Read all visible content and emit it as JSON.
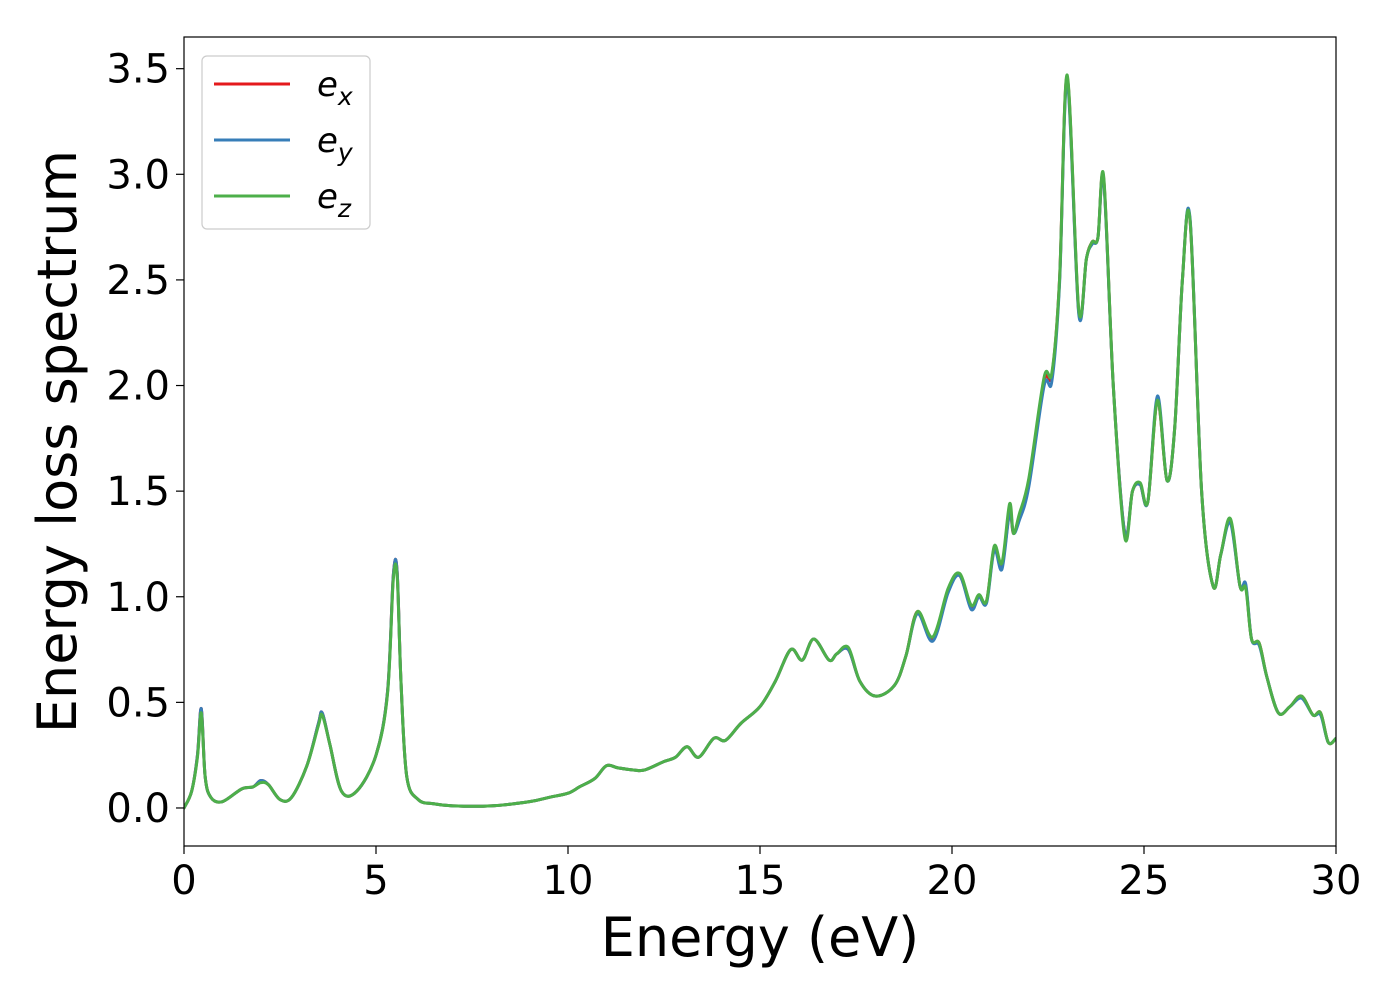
{
  "chart_data": {
    "type": "line",
    "xlabel": "Energy (eV)",
    "ylabel": "Energy loss spectrum",
    "xlim": [
      0,
      30
    ],
    "ylim": [
      -0.18,
      3.65
    ],
    "xticks": [
      "0",
      "5",
      "10",
      "15",
      "20",
      "25",
      "30"
    ],
    "yticks": [
      "0.0",
      "0.5",
      "1.0",
      "1.5",
      "2.0",
      "2.5",
      "3.0",
      "3.5"
    ],
    "grid": false,
    "legend_position": "top-left",
    "x": [
      0,
      0.2,
      0.35,
      0.45,
      0.55,
      0.7,
      1.0,
      1.5,
      1.8,
      2.0,
      2.2,
      2.5,
      2.8,
      3.2,
      3.5,
      3.6,
      3.8,
      4.1,
      4.5,
      5.0,
      5.3,
      5.45,
      5.55,
      5.65,
      5.8,
      6.1,
      6.5,
      7.0,
      8.0,
      9.0,
      9.5,
      10.0,
      10.3,
      10.7,
      11.0,
      11.3,
      11.7,
      12.0,
      12.5,
      12.8,
      13.1,
      13.4,
      13.8,
      14.1,
      14.5,
      15.0,
      15.4,
      15.8,
      16.1,
      16.4,
      16.8,
      17.0,
      17.3,
      17.6,
      18.0,
      18.5,
      18.8,
      19.1,
      19.5,
      19.9,
      20.2,
      20.5,
      20.7,
      20.9,
      21.1,
      21.3,
      21.5,
      21.6,
      21.75,
      22.0,
      22.4,
      22.6,
      22.8,
      23.0,
      23.3,
      23.5,
      23.65,
      23.8,
      23.95,
      24.2,
      24.5,
      24.7,
      24.9,
      25.1,
      25.35,
      25.6,
      25.8,
      26.0,
      26.2,
      26.5,
      26.8,
      27.0,
      27.25,
      27.5,
      27.65,
      27.8,
      28.0,
      28.2,
      28.5,
      28.8,
      29.1,
      29.4,
      29.6,
      29.8,
      30.0
    ],
    "series": [
      {
        "name": "e_x",
        "color": "#e41a1c",
        "values": [
          0.0,
          0.08,
          0.25,
          0.47,
          0.15,
          0.05,
          0.03,
          0.09,
          0.1,
          0.13,
          0.11,
          0.04,
          0.05,
          0.2,
          0.4,
          0.45,
          0.3,
          0.08,
          0.08,
          0.25,
          0.55,
          1.1,
          1.12,
          0.6,
          0.15,
          0.04,
          0.02,
          0.01,
          0.01,
          0.03,
          0.05,
          0.07,
          0.1,
          0.14,
          0.2,
          0.19,
          0.18,
          0.18,
          0.22,
          0.24,
          0.29,
          0.24,
          0.33,
          0.32,
          0.4,
          0.48,
          0.6,
          0.75,
          0.7,
          0.8,
          0.7,
          0.73,
          0.75,
          0.6,
          0.53,
          0.58,
          0.72,
          0.93,
          0.8,
          1.03,
          1.1,
          0.95,
          1.0,
          0.98,
          1.23,
          1.15,
          1.4,
          1.3,
          1.38,
          1.55,
          2.02,
          2.05,
          2.5,
          3.46,
          2.35,
          2.6,
          2.68,
          2.7,
          2.98,
          2.0,
          1.3,
          1.5,
          1.53,
          1.45,
          1.93,
          1.55,
          1.8,
          2.5,
          2.78,
          1.5,
          1.05,
          1.2,
          1.36,
          1.05,
          1.05,
          0.8,
          0.78,
          0.62,
          0.45,
          0.48,
          0.53,
          0.44,
          0.45,
          0.31,
          0.33
        ]
      },
      {
        "name": "e_y",
        "color": "#377eb8",
        "values": [
          0.0,
          0.08,
          0.25,
          0.47,
          0.15,
          0.05,
          0.03,
          0.09,
          0.1,
          0.13,
          0.11,
          0.04,
          0.05,
          0.2,
          0.4,
          0.45,
          0.3,
          0.08,
          0.08,
          0.25,
          0.55,
          1.1,
          1.12,
          0.6,
          0.15,
          0.04,
          0.02,
          0.01,
          0.01,
          0.03,
          0.05,
          0.07,
          0.1,
          0.14,
          0.2,
          0.19,
          0.18,
          0.18,
          0.22,
          0.24,
          0.29,
          0.24,
          0.33,
          0.32,
          0.4,
          0.48,
          0.6,
          0.75,
          0.7,
          0.8,
          0.7,
          0.73,
          0.75,
          0.6,
          0.53,
          0.58,
          0.72,
          0.92,
          0.79,
          1.02,
          1.1,
          0.94,
          1.0,
          0.97,
          1.22,
          1.13,
          1.4,
          1.3,
          1.36,
          1.52,
          2.0,
          2.02,
          2.48,
          3.44,
          2.34,
          2.6,
          2.67,
          2.7,
          2.97,
          2.0,
          1.3,
          1.5,
          1.53,
          1.45,
          1.95,
          1.55,
          1.8,
          2.5,
          2.79,
          1.5,
          1.05,
          1.2,
          1.35,
          1.05,
          1.06,
          0.8,
          0.77,
          0.62,
          0.45,
          0.48,
          0.52,
          0.44,
          0.44,
          0.31,
          0.33
        ]
      },
      {
        "name": "e_z",
        "color": "#4daf4a",
        "values": [
          0.0,
          0.08,
          0.24,
          0.45,
          0.15,
          0.05,
          0.03,
          0.09,
          0.1,
          0.12,
          0.11,
          0.04,
          0.05,
          0.2,
          0.39,
          0.44,
          0.3,
          0.08,
          0.08,
          0.25,
          0.54,
          1.08,
          1.1,
          0.6,
          0.15,
          0.04,
          0.02,
          0.01,
          0.01,
          0.03,
          0.05,
          0.07,
          0.1,
          0.14,
          0.2,
          0.19,
          0.18,
          0.18,
          0.22,
          0.24,
          0.29,
          0.24,
          0.33,
          0.32,
          0.4,
          0.48,
          0.6,
          0.75,
          0.7,
          0.8,
          0.7,
          0.73,
          0.76,
          0.6,
          0.53,
          0.58,
          0.72,
          0.93,
          0.81,
          1.04,
          1.11,
          0.96,
          1.01,
          0.98,
          1.24,
          1.16,
          1.44,
          1.3,
          1.39,
          1.56,
          2.04,
          2.06,
          2.5,
          3.47,
          2.36,
          2.6,
          2.68,
          2.7,
          2.99,
          2.0,
          1.28,
          1.5,
          1.54,
          1.45,
          1.93,
          1.55,
          1.8,
          2.5,
          2.78,
          1.5,
          1.05,
          1.2,
          1.37,
          1.05,
          1.04,
          0.8,
          0.78,
          0.62,
          0.45,
          0.48,
          0.53,
          0.44,
          0.45,
          0.31,
          0.33
        ]
      }
    ],
    "legend": [
      {
        "base": "e",
        "sub": "x",
        "color": "#e41a1c"
      },
      {
        "base": "e",
        "sub": "y",
        "color": "#377eb8"
      },
      {
        "base": "e",
        "sub": "z",
        "color": "#4daf4a"
      }
    ]
  }
}
